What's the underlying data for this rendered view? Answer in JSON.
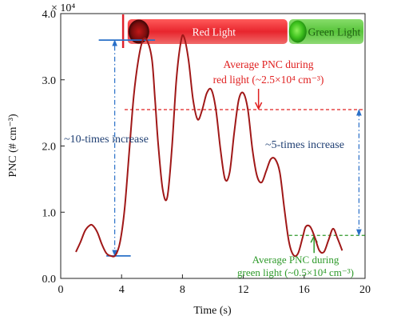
{
  "chart_data": {
    "type": "line",
    "xlabel": "Time (s)",
    "ylabel": "PNC (# cm⁻³)",
    "y_multiplier": "× 10⁴",
    "xlim": [
      0,
      20
    ],
    "ylim": [
      0,
      4
    ],
    "xticks": [
      0,
      4,
      8,
      12,
      16,
      20
    ],
    "xtick_labels": [
      "0",
      "4",
      "8",
      "12",
      "16",
      "20"
    ],
    "yticks": [
      0,
      1,
      2,
      3,
      4
    ],
    "ytick_labels": [
      "0.0",
      "1.0",
      "2.0",
      "3.0",
      "4.0"
    ],
    "grid": false,
    "series": [
      {
        "color": "#a01818",
        "x": [
          1.0,
          1.3,
          1.6,
          1.9,
          2.1,
          2.4,
          2.7,
          3.0,
          3.3,
          3.6,
          3.9,
          4.2,
          4.5,
          4.8,
          5.1,
          5.4,
          5.7,
          6.0,
          6.2,
          6.4,
          6.7,
          7.0,
          7.3,
          7.6,
          7.9,
          8.1,
          8.4,
          8.7,
          9.0,
          9.3,
          9.6,
          9.9,
          10.2,
          10.5,
          10.8,
          11.1,
          11.4,
          11.7,
          12.0,
          12.3,
          12.6,
          12.9,
          13.2,
          13.5,
          13.8,
          14.1,
          14.4,
          14.7,
          15.0,
          15.3,
          15.6,
          15.9,
          16.1,
          16.4,
          16.7,
          17.0,
          17.3,
          17.6,
          17.9,
          18.2,
          18.5
        ],
        "y": [
          0.4,
          0.55,
          0.72,
          0.8,
          0.8,
          0.7,
          0.52,
          0.38,
          0.34,
          0.35,
          0.55,
          1.05,
          1.9,
          2.75,
          3.3,
          3.6,
          3.58,
          3.3,
          2.7,
          2.05,
          1.35,
          1.22,
          1.95,
          3.0,
          3.58,
          3.65,
          3.3,
          2.7,
          2.4,
          2.55,
          2.8,
          2.85,
          2.55,
          1.95,
          1.5,
          1.6,
          2.2,
          2.7,
          2.8,
          2.55,
          1.95,
          1.55,
          1.45,
          1.62,
          1.8,
          1.8,
          1.6,
          1.05,
          0.55,
          0.35,
          0.38,
          0.62,
          0.78,
          0.78,
          0.62,
          0.42,
          0.4,
          0.58,
          0.75,
          0.6,
          0.42
        ]
      }
    ],
    "light_bar": [
      {
        "label": "Red Light",
        "x_start": 4.4,
        "x_end": 14.9,
        "color": "#e8252d"
      },
      {
        "label": "Green Light",
        "x_start": 15.0,
        "x_end": 19.9,
        "color": "#58c43a"
      }
    ],
    "reference_lines": [
      {
        "y": 2.55,
        "x_start": 4.2,
        "x_end": 20,
        "color": "#e02020",
        "style": "dashed"
      },
      {
        "y": 0.65,
        "x_start": 15.0,
        "x_end": 20,
        "color": "#2e9a2a",
        "style": "dashed"
      }
    ],
    "annotations": [
      {
        "id": "red_avg_l1",
        "text": "Average PNC during",
        "color": "#e02020"
      },
      {
        "id": "red_avg_l2",
        "text": "red light (~2.5×10⁴ cm⁻³)",
        "color": "#e02020"
      },
      {
        "id": "ten_times",
        "text": "~10-times increase",
        "color": "#1f3f73"
      },
      {
        "id": "five_times",
        "text": "~5-times increase",
        "color": "#1f3f73"
      },
      {
        "id": "green_avg_l1",
        "text": "Average PNC during",
        "color": "#2e9a2a"
      },
      {
        "id": "green_avg_l2",
        "text": "green light (~0.5×10⁴ cm⁻³)",
        "color": "#2e9a2a"
      }
    ],
    "ten_times_arrow": {
      "x": 3.55,
      "y_low": 0.34,
      "y_high": 3.6
    },
    "five_times_arrow": {
      "x": 19.6,
      "y_low": 0.65,
      "y_high": 2.55
    }
  }
}
